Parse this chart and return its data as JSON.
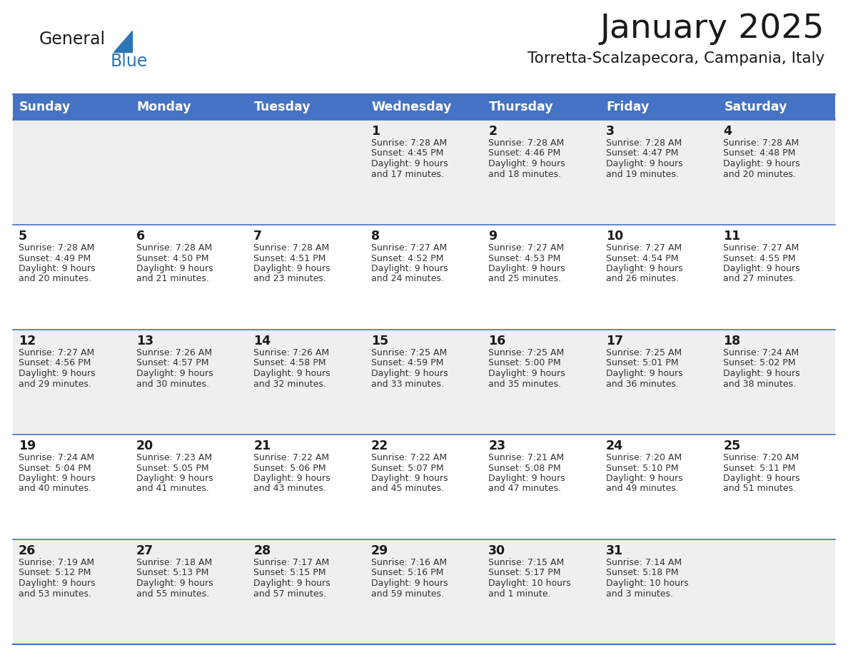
{
  "title": "January 2025",
  "subtitle": "Torretta-Scalzapecora, Campania, Italy",
  "header_color": "#4472C4",
  "header_text_color": "#FFFFFF",
  "cell_bg_even": "#EFEFEF",
  "cell_bg_odd": "#FFFFFF",
  "day_names": [
    "Sunday",
    "Monday",
    "Tuesday",
    "Wednesday",
    "Thursday",
    "Friday",
    "Saturday"
  ],
  "title_color": "#1a1a1a",
  "subtitle_color": "#1a1a1a",
  "line_color": "#4472C4",
  "text_color": "#333333",
  "day_num_color": "#1a1a1a",
  "calendar_data": [
    [
      {
        "day": "",
        "sunrise": "",
        "sunset": "",
        "daylight": ""
      },
      {
        "day": "",
        "sunrise": "",
        "sunset": "",
        "daylight": ""
      },
      {
        "day": "",
        "sunrise": "",
        "sunset": "",
        "daylight": ""
      },
      {
        "day": "1",
        "sunrise": "7:28 AM",
        "sunset": "4:45 PM",
        "daylight": "9 hours\nand 17 minutes."
      },
      {
        "day": "2",
        "sunrise": "7:28 AM",
        "sunset": "4:46 PM",
        "daylight": "9 hours\nand 18 minutes."
      },
      {
        "day": "3",
        "sunrise": "7:28 AM",
        "sunset": "4:47 PM",
        "daylight": "9 hours\nand 19 minutes."
      },
      {
        "day": "4",
        "sunrise": "7:28 AM",
        "sunset": "4:48 PM",
        "daylight": "9 hours\nand 20 minutes."
      }
    ],
    [
      {
        "day": "5",
        "sunrise": "7:28 AM",
        "sunset": "4:49 PM",
        "daylight": "9 hours\nand 20 minutes."
      },
      {
        "day": "6",
        "sunrise": "7:28 AM",
        "sunset": "4:50 PM",
        "daylight": "9 hours\nand 21 minutes."
      },
      {
        "day": "7",
        "sunrise": "7:28 AM",
        "sunset": "4:51 PM",
        "daylight": "9 hours\nand 23 minutes."
      },
      {
        "day": "8",
        "sunrise": "7:27 AM",
        "sunset": "4:52 PM",
        "daylight": "9 hours\nand 24 minutes."
      },
      {
        "day": "9",
        "sunrise": "7:27 AM",
        "sunset": "4:53 PM",
        "daylight": "9 hours\nand 25 minutes."
      },
      {
        "day": "10",
        "sunrise": "7:27 AM",
        "sunset": "4:54 PM",
        "daylight": "9 hours\nand 26 minutes."
      },
      {
        "day": "11",
        "sunrise": "7:27 AM",
        "sunset": "4:55 PM",
        "daylight": "9 hours\nand 27 minutes."
      }
    ],
    [
      {
        "day": "12",
        "sunrise": "7:27 AM",
        "sunset": "4:56 PM",
        "daylight": "9 hours\nand 29 minutes."
      },
      {
        "day": "13",
        "sunrise": "7:26 AM",
        "sunset": "4:57 PM",
        "daylight": "9 hours\nand 30 minutes."
      },
      {
        "day": "14",
        "sunrise": "7:26 AM",
        "sunset": "4:58 PM",
        "daylight": "9 hours\nand 32 minutes."
      },
      {
        "day": "15",
        "sunrise": "7:25 AM",
        "sunset": "4:59 PM",
        "daylight": "9 hours\nand 33 minutes."
      },
      {
        "day": "16",
        "sunrise": "7:25 AM",
        "sunset": "5:00 PM",
        "daylight": "9 hours\nand 35 minutes."
      },
      {
        "day": "17",
        "sunrise": "7:25 AM",
        "sunset": "5:01 PM",
        "daylight": "9 hours\nand 36 minutes."
      },
      {
        "day": "18",
        "sunrise": "7:24 AM",
        "sunset": "5:02 PM",
        "daylight": "9 hours\nand 38 minutes."
      }
    ],
    [
      {
        "day": "19",
        "sunrise": "7:24 AM",
        "sunset": "5:04 PM",
        "daylight": "9 hours\nand 40 minutes."
      },
      {
        "day": "20",
        "sunrise": "7:23 AM",
        "sunset": "5:05 PM",
        "daylight": "9 hours\nand 41 minutes."
      },
      {
        "day": "21",
        "sunrise": "7:22 AM",
        "sunset": "5:06 PM",
        "daylight": "9 hours\nand 43 minutes."
      },
      {
        "day": "22",
        "sunrise": "7:22 AM",
        "sunset": "5:07 PM",
        "daylight": "9 hours\nand 45 minutes."
      },
      {
        "day": "23",
        "sunrise": "7:21 AM",
        "sunset": "5:08 PM",
        "daylight": "9 hours\nand 47 minutes."
      },
      {
        "day": "24",
        "sunrise": "7:20 AM",
        "sunset": "5:10 PM",
        "daylight": "9 hours\nand 49 minutes."
      },
      {
        "day": "25",
        "sunrise": "7:20 AM",
        "sunset": "5:11 PM",
        "daylight": "9 hours\nand 51 minutes."
      }
    ],
    [
      {
        "day": "26",
        "sunrise": "7:19 AM",
        "sunset": "5:12 PM",
        "daylight": "9 hours\nand 53 minutes."
      },
      {
        "day": "27",
        "sunrise": "7:18 AM",
        "sunset": "5:13 PM",
        "daylight": "9 hours\nand 55 minutes."
      },
      {
        "day": "28",
        "sunrise": "7:17 AM",
        "sunset": "5:15 PM",
        "daylight": "9 hours\nand 57 minutes."
      },
      {
        "day": "29",
        "sunrise": "7:16 AM",
        "sunset": "5:16 PM",
        "daylight": "9 hours\nand 59 minutes."
      },
      {
        "day": "30",
        "sunrise": "7:15 AM",
        "sunset": "5:17 PM",
        "daylight": "10 hours\nand 1 minute."
      },
      {
        "day": "31",
        "sunrise": "7:14 AM",
        "sunset": "5:18 PM",
        "daylight": "10 hours\nand 3 minutes."
      },
      {
        "day": "",
        "sunrise": "",
        "sunset": "",
        "daylight": ""
      }
    ]
  ]
}
